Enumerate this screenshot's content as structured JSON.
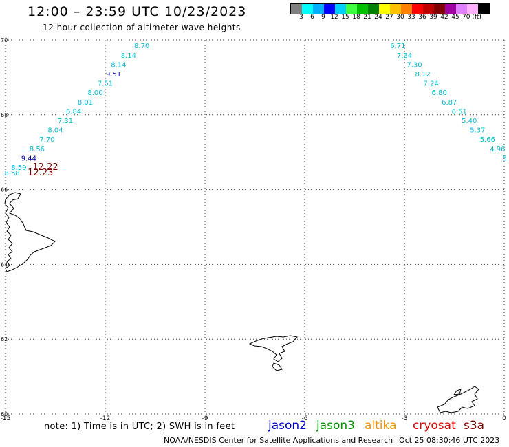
{
  "header": {
    "title": "12:00 – 23:59 UTC 10/23/2023",
    "subtitle": "12 hour collection of altimeter wave heights"
  },
  "legend": {
    "colors": [
      "#808080",
      "#00ffff",
      "#00b0ff",
      "#0000ff",
      "#00d0ff",
      "#40ff40",
      "#00c000",
      "#008000",
      "#ffff00",
      "#ffc000",
      "#ff8000",
      "#ff0000",
      "#c00000",
      "#800000",
      "#a000a0",
      "#e080ff",
      "#ffb0ff",
      "#000000"
    ],
    "labels": [
      "3",
      "6",
      "9",
      "12",
      "15",
      "18",
      "21",
      "24",
      "27",
      "30",
      "33",
      "36",
      "39",
      "42",
      "45",
      "70 (ft)"
    ]
  },
  "map": {
    "x_ticks": [
      "-15",
      "-12",
      "-9",
      "-6",
      "-3",
      "0"
    ],
    "y_ticks": [
      "60",
      "62",
      "64",
      "66",
      "68",
      "70"
    ],
    "lon_range": [
      -15,
      0
    ],
    "lat_range": [
      60,
      70
    ]
  },
  "tracks": [
    {
      "name": "track-left-jason3",
      "color": "#00bcd8",
      "points": [
        {
          "lon": -10.9,
          "lat": 69.85,
          "v": "8.70"
        },
        {
          "lon": -11.3,
          "lat": 69.6,
          "v": "8.14"
        },
        {
          "lon": -11.6,
          "lat": 69.35,
          "v": "8.14"
        },
        {
          "lon": -11.75,
          "lat": 69.1,
          "v": "9.51",
          "color": "#0000b0"
        },
        {
          "lon": -12.0,
          "lat": 68.85,
          "v": "7.51"
        },
        {
          "lon": -12.3,
          "lat": 68.6,
          "v": "8.00"
        },
        {
          "lon": -12.6,
          "lat": 68.35,
          "v": "8.01"
        },
        {
          "lon": -12.95,
          "lat": 68.1,
          "v": "6.84"
        },
        {
          "lon": -13.2,
          "lat": 67.85,
          "v": "7.31"
        },
        {
          "lon": -13.5,
          "lat": 67.6,
          "v": "8.04"
        },
        {
          "lon": -13.75,
          "lat": 67.35,
          "v": "7.70"
        },
        {
          "lon": -14.05,
          "lat": 67.1,
          "v": "8.56"
        },
        {
          "lon": -14.3,
          "lat": 66.85,
          "v": "9.44",
          "color": "#0000b0"
        },
        {
          "lon": -14.6,
          "lat": 66.6,
          "v": "8.59"
        },
        {
          "lon": -14.8,
          "lat": 66.45,
          "v": "8.58"
        }
      ]
    },
    {
      "name": "track-cryosat",
      "color": "#800000",
      "points": [
        {
          "lon": -13.8,
          "lat": 66.6,
          "v": "12.22"
        },
        {
          "lon": -13.95,
          "lat": 66.45,
          "v": "12.23"
        }
      ]
    },
    {
      "name": "track-right-jason3",
      "color": "#00bcd8",
      "points": [
        {
          "lon": -3.2,
          "lat": 69.85,
          "v": "6.71"
        },
        {
          "lon": -3.0,
          "lat": 69.6,
          "v": "7.34"
        },
        {
          "lon": -2.7,
          "lat": 69.35,
          "v": "7.30"
        },
        {
          "lon": -2.45,
          "lat": 69.1,
          "v": "8.12"
        },
        {
          "lon": -2.2,
          "lat": 68.85,
          "v": "7.24"
        },
        {
          "lon": -1.95,
          "lat": 68.6,
          "v": "6.80"
        },
        {
          "lon": -1.65,
          "lat": 68.35,
          "v": "6.87"
        },
        {
          "lon": -1.35,
          "lat": 68.1,
          "v": "6.51"
        },
        {
          "lon": -1.05,
          "lat": 67.85,
          "v": "5.40"
        },
        {
          "lon": -0.8,
          "lat": 67.6,
          "v": "5.37"
        },
        {
          "lon": -0.5,
          "lat": 67.35,
          "v": "5.66"
        },
        {
          "lon": -0.2,
          "lat": 67.1,
          "v": "4.96"
        },
        {
          "lon": 0.05,
          "lat": 66.85,
          "v": "5."
        }
      ]
    }
  ],
  "footer": {
    "note": "note: 1) Time is in UTC; 2) SWH is in feet",
    "satellites": [
      {
        "name": "jason2",
        "color": "#0000d0"
      },
      {
        "name": "jason3",
        "color": "#009000"
      },
      {
        "name": "altika",
        "color": "#ff9000"
      },
      {
        "name": "cryosat",
        "color": "#e00000"
      },
      {
        "name": "s3a",
        "color": "#800000"
      }
    ],
    "credit": "NOAA/NESDIS Center for Satellite Applications and Research",
    "timestamp": "Oct 25 08:30:46 UTC 2023"
  }
}
